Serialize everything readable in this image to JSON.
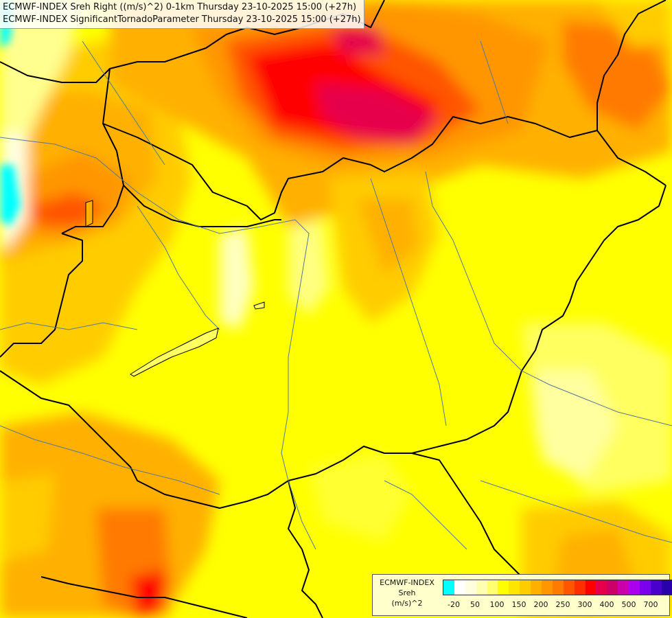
{
  "title": {
    "line1": "ECMWF-INDEX Sreh Right ((m/s)^2) 0-1km Thursday 23-10-2025 15:00 (+27h)",
    "line2": "ECMWF-INDEX SignificantTornadoParameter Thursday 23-10-2025 15:00 (+27h)"
  },
  "legend": {
    "model": "ECMWF-INDEX",
    "variable": "Sreh",
    "unit": "(m/s)^2",
    "colors": [
      "#00ffff",
      "#ffffff",
      "#ffffe0",
      "#ffffb0",
      "#ffff70",
      "#ffff00",
      "#ffe600",
      "#ffcc00",
      "#ffb000",
      "#ff9600",
      "#ff7a00",
      "#ff5500",
      "#ff2d00",
      "#ff0000",
      "#e6004c",
      "#cc0066",
      "#cc00aa",
      "#aa00ee",
      "#7a00ee",
      "#4a00cc",
      "#2a00aa",
      "#000080"
    ],
    "tick_labels": [
      "-20",
      "50",
      "100",
      "150",
      "200",
      "250",
      "300",
      "400",
      "500",
      "700"
    ]
  }
}
